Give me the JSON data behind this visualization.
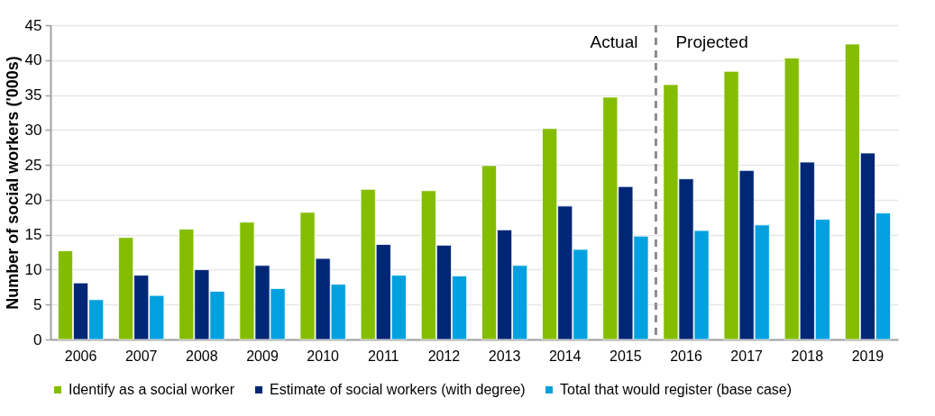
{
  "chart_data": {
    "type": "bar",
    "ylabel": "Number of social workers ('000s)",
    "categories": [
      "2006",
      "2007",
      "2008",
      "2009",
      "2010",
      "2011",
      "2012",
      "2013",
      "2014",
      "2015",
      "2016",
      "2017",
      "2018",
      "2019"
    ],
    "series": [
      {
        "name": "Identify as a social worker",
        "color": "#84bd00",
        "values": [
          12.7,
          14.6,
          15.8,
          16.8,
          18.2,
          21.5,
          21.3,
          24.9,
          30.2,
          34.7,
          36.5,
          38.4,
          40.3,
          42.3
        ]
      },
      {
        "name": "Estimate of social workers (with degree)",
        "color": "#002776",
        "values": [
          8.1,
          9.2,
          10.0,
          10.6,
          11.6,
          13.6,
          13.5,
          15.7,
          19.1,
          21.9,
          23.0,
          24.2,
          25.4,
          26.7
        ]
      },
      {
        "name": "Total that would register (base case)",
        "color": "#00a1de",
        "values": [
          5.7,
          6.3,
          6.9,
          7.3,
          7.9,
          9.2,
          9.1,
          10.6,
          12.9,
          14.8,
          15.6,
          16.4,
          17.2,
          18.1
        ]
      }
    ],
    "ylim": [
      0,
      45
    ],
    "yticks": [
      0,
      5,
      10,
      15,
      20,
      25,
      30,
      35,
      40,
      45
    ],
    "grid": "y",
    "legend": "bottom",
    "ref_lines": [
      {
        "axis": "x",
        "value": "2016",
        "color": "#8c8c8c",
        "line_style": "dashed"
      }
    ],
    "annotations": [
      "Actual",
      "Projected"
    ]
  }
}
